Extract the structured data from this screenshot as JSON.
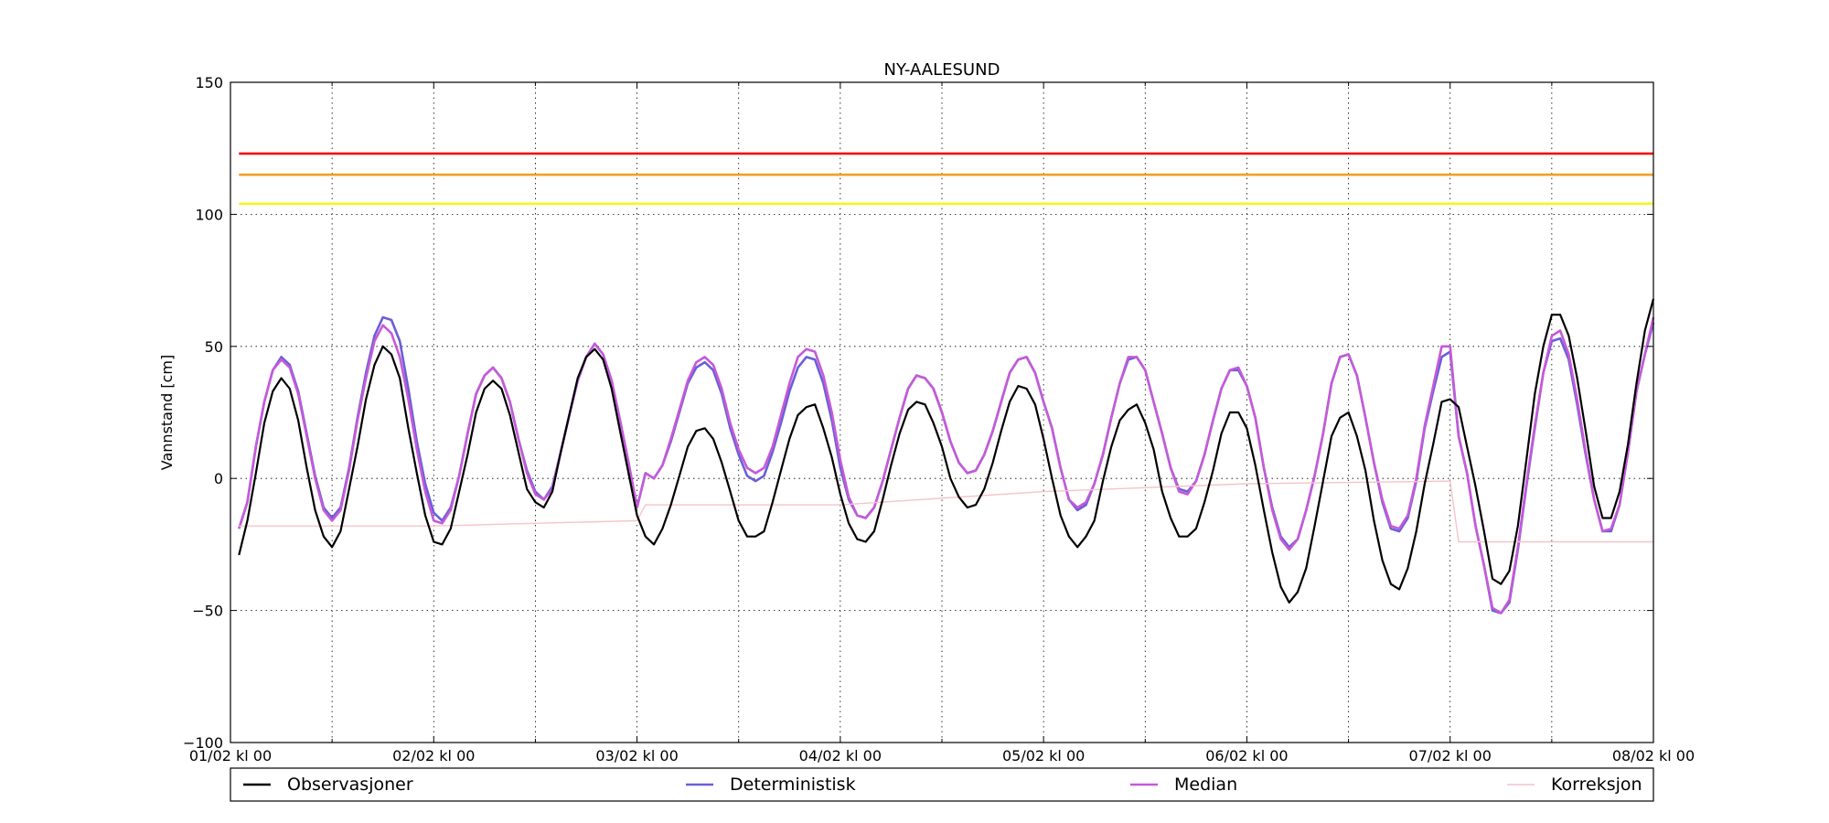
{
  "chart_data": {
    "type": "line",
    "title": "NY-AALESUND",
    "xlabel": "",
    "ylabel": "Vannstand [cm]",
    "xlim": [
      0,
      168
    ],
    "ylim": [
      -100,
      150
    ],
    "yticks": [
      -100,
      -50,
      0,
      50,
      100,
      150
    ],
    "ytick_labels": [
      "−100",
      "−50",
      "0",
      "50",
      "100",
      "150"
    ],
    "xticks": [
      0,
      24,
      48,
      72,
      96,
      120,
      144,
      168
    ],
    "xtick_labels": [
      "01/02 kl 00",
      "02/02 kl 00",
      "03/02 kl 00",
      "04/02 kl 00",
      "05/02 kl 00",
      "06/02 kl 00",
      "07/02 kl 00",
      "08/02 kl 00"
    ],
    "minor_xticks": [
      12,
      36,
      60,
      84,
      108,
      132,
      156
    ],
    "grid": true,
    "legend_position": "bottom",
    "thresholds": [
      {
        "value": 123,
        "color": "#ee1111"
      },
      {
        "value": 115,
        "color": "#f0a020"
      },
      {
        "value": 104,
        "color": "#f5f522"
      }
    ],
    "series": [
      {
        "name": "Observasjoner",
        "color": "#000000",
        "x": [
          1,
          2,
          3,
          4,
          5,
          6,
          7,
          8,
          9,
          10,
          11,
          12,
          13,
          14,
          15,
          16,
          17,
          18,
          19,
          20,
          21,
          22,
          23,
          24,
          25,
          26,
          27,
          28,
          29,
          30,
          31,
          32,
          33,
          34,
          35,
          36,
          37,
          38,
          39,
          40,
          41,
          42,
          43,
          44,
          45,
          46,
          47,
          48,
          49,
          50,
          51,
          52,
          53,
          54,
          55,
          56,
          57,
          58,
          59,
          60,
          61,
          62,
          63,
          64,
          65,
          66,
          67,
          68,
          69,
          70,
          71,
          72,
          73,
          74,
          75,
          76,
          77,
          78,
          79,
          80,
          81,
          82,
          83,
          84,
          85,
          86,
          87,
          88,
          89,
          90,
          91,
          92,
          93,
          94,
          95,
          96,
          97,
          98,
          99,
          100,
          101,
          102,
          103,
          104,
          105,
          106,
          107,
          108,
          109,
          110,
          111,
          112,
          113,
          114,
          115,
          116,
          117,
          118,
          119,
          120,
          121,
          122,
          123,
          124,
          125,
          126,
          127,
          128,
          129,
          130,
          131,
          132,
          133,
          134,
          135,
          136,
          137,
          138,
          139,
          140,
          141,
          142,
          143,
          144,
          145,
          146,
          147,
          148,
          149,
          150,
          151,
          152,
          153,
          154,
          155,
          156,
          157,
          158,
          159,
          160,
          161,
          162,
          163,
          164,
          165,
          166,
          167,
          168
        ],
        "y": [
          -29,
          -16,
          2,
          21,
          33,
          38,
          34,
          22,
          4,
          -12,
          -22,
          -26,
          -20,
          -4,
          12,
          30,
          43,
          50,
          47,
          38,
          19,
          2,
          -14,
          -24,
          -25,
          -19,
          -5,
          9,
          25,
          34,
          37,
          34,
          24,
          10,
          -4,
          -9,
          -11,
          -5,
          10,
          24,
          38,
          46,
          49,
          45,
          34,
          18,
          2,
          -14,
          -22,
          -25,
          -19,
          -10,
          1,
          12,
          18,
          19,
          15,
          6,
          -5,
          -16,
          -22,
          -22,
          -20,
          -9,
          3,
          15,
          24,
          27,
          28,
          19,
          8,
          -6,
          -17,
          -23,
          -24,
          -20,
          -8,
          5,
          17,
          26,
          29,
          28,
          21,
          12,
          0,
          -7,
          -11,
          -10,
          -4,
          6,
          18,
          29,
          35,
          34,
          28,
          15,
          0,
          -14,
          -22,
          -26,
          -22,
          -16,
          -1,
          12,
          22,
          26,
          28,
          21,
          11,
          -5,
          -15,
          -22,
          -22,
          -19,
          -9,
          3,
          17,
          25,
          25,
          19,
          5,
          -12,
          -28,
          -41,
          -47,
          -43,
          -34,
          -18,
          -1,
          16,
          23,
          25,
          16,
          3,
          -16,
          -31,
          -40,
          -42,
          -34,
          -20,
          -2,
          13,
          29,
          30,
          27,
          12,
          -3,
          -20,
          -38,
          -40,
          -35,
          -18,
          7,
          32,
          50,
          62,
          62,
          54,
          38,
          18,
          -3,
          -15,
          -15,
          -5,
          13,
          36,
          56,
          68
        ]
      },
      {
        "name": "Deterministisk",
        "color": "#6a5fd8",
        "x": [
          1,
          2,
          3,
          4,
          5,
          6,
          7,
          8,
          9,
          10,
          11,
          12,
          13,
          14,
          15,
          16,
          17,
          18,
          19,
          20,
          21,
          22,
          23,
          24,
          25,
          26,
          27,
          28,
          29,
          30,
          31,
          32,
          33,
          34,
          35,
          36,
          37,
          38,
          39,
          40,
          41,
          42,
          43,
          44,
          45,
          46,
          47,
          48,
          49,
          50,
          51,
          52,
          53,
          54,
          55,
          56,
          57,
          58,
          59,
          60,
          61,
          62,
          63,
          64,
          65,
          66,
          67,
          68,
          69,
          70,
          71,
          72,
          73,
          74,
          75,
          76,
          77,
          78,
          79,
          80,
          81,
          82,
          83,
          84,
          85,
          86,
          87,
          88,
          89,
          90,
          91,
          92,
          93,
          94,
          95,
          96,
          97,
          98,
          99,
          100,
          101,
          102,
          103,
          104,
          105,
          106,
          107,
          108,
          109,
          110,
          111,
          112,
          113,
          114,
          115,
          116,
          117,
          118,
          119,
          120,
          121,
          122,
          123,
          124,
          125,
          126,
          127,
          128,
          129,
          130,
          131,
          132,
          133,
          134,
          135,
          136,
          137,
          138,
          139,
          140,
          141,
          142,
          143,
          144,
          145,
          146,
          147,
          148,
          149,
          150,
          151,
          152,
          153,
          154,
          155,
          156,
          157,
          158,
          159,
          160,
          161,
          162,
          163,
          164,
          165,
          166,
          167,
          168
        ],
        "y": [
          -19,
          -9,
          12,
          29,
          41,
          46,
          43,
          33,
          17,
          1,
          -11,
          -15,
          -11,
          4,
          23,
          40,
          54,
          61,
          60,
          52,
          34,
          14,
          -2,
          -13,
          -16,
          -11,
          1,
          17,
          32,
          39,
          42,
          38,
          29,
          15,
          3,
          -5,
          -8,
          -3,
          10,
          24,
          37,
          46,
          51,
          47,
          37,
          22,
          6,
          -11,
          2,
          0,
          5,
          14,
          25,
          36,
          42,
          44,
          41,
          32,
          19,
          9,
          1,
          -1,
          1,
          10,
          21,
          33,
          42,
          46,
          45,
          36,
          22,
          4,
          -8,
          -14,
          -15,
          -11,
          -1,
          11,
          23,
          34,
          39,
          38,
          34,
          25,
          14,
          6,
          2,
          3,
          9,
          18,
          29,
          40,
          45,
          46,
          40,
          29,
          19,
          4,
          -8,
          -12,
          -10,
          -2,
          9,
          23,
          36,
          45,
          46,
          41,
          29,
          17,
          4,
          -4,
          -5,
          -1,
          9,
          22,
          34,
          41,
          41,
          35,
          23,
          4,
          -11,
          -22,
          -26,
          -23,
          -12,
          1,
          17,
          36,
          46,
          47,
          39,
          23,
          6,
          -9,
          -19,
          -20,
          -15,
          -1,
          19,
          33,
          46,
          48,
          16,
          2,
          -18,
          -33,
          -50,
          -51,
          -47,
          -27,
          -3,
          19,
          40,
          52,
          53,
          45,
          28,
          9,
          -8,
          -20,
          -20,
          -10,
          10,
          33,
          47,
          59
        ]
      },
      {
        "name": "Median",
        "color": "#c45ad8",
        "x": [
          1,
          2,
          3,
          4,
          5,
          6,
          7,
          8,
          9,
          10,
          11,
          12,
          13,
          14,
          15,
          16,
          17,
          18,
          19,
          20,
          21,
          22,
          23,
          24,
          25,
          26,
          27,
          28,
          29,
          30,
          31,
          32,
          33,
          34,
          35,
          36,
          37,
          38,
          39,
          40,
          41,
          42,
          43,
          44,
          45,
          46,
          47,
          48,
          49,
          50,
          51,
          52,
          53,
          54,
          55,
          56,
          57,
          58,
          59,
          60,
          61,
          62,
          63,
          64,
          65,
          66,
          67,
          68,
          69,
          70,
          71,
          72,
          73,
          74,
          75,
          76,
          77,
          78,
          79,
          80,
          81,
          82,
          83,
          84,
          85,
          86,
          87,
          88,
          89,
          90,
          91,
          92,
          93,
          94,
          95,
          96,
          97,
          98,
          99,
          100,
          101,
          102,
          103,
          104,
          105,
          106,
          107,
          108,
          109,
          110,
          111,
          112,
          113,
          114,
          115,
          116,
          117,
          118,
          119,
          120,
          121,
          122,
          123,
          124,
          125,
          126,
          127,
          128,
          129,
          130,
          131,
          132,
          133,
          134,
          135,
          136,
          137,
          138,
          139,
          140,
          141,
          142,
          143,
          144,
          145,
          146,
          147,
          148,
          149,
          150,
          151,
          152,
          153,
          154,
          155,
          156,
          157,
          158,
          159,
          160,
          161,
          162,
          163,
          164,
          165,
          166,
          167,
          168
        ],
        "y": [
          -19,
          -9,
          12,
          29,
          41,
          45,
          42,
          32,
          16,
          0,
          -12,
          -16,
          -12,
          3,
          22,
          38,
          52,
          58,
          55,
          46,
          30,
          11,
          -5,
          -16,
          -17,
          -12,
          1,
          17,
          32,
          39,
          42,
          38,
          29,
          15,
          2,
          -6,
          -8,
          -4,
          10,
          24,
          37,
          46,
          51,
          47,
          37,
          22,
          6,
          -11,
          2,
          0,
          5,
          15,
          26,
          37,
          44,
          46,
          43,
          34,
          21,
          11,
          4,
          2,
          4,
          12,
          24,
          36,
          46,
          49,
          48,
          39,
          25,
          7,
          -7,
          -14,
          -15,
          -11,
          -1,
          11,
          23,
          34,
          39,
          38,
          34,
          25,
          14,
          6,
          2,
          3,
          9,
          18,
          29,
          40,
          45,
          46,
          40,
          29,
          19,
          4,
          -8,
          -11,
          -9,
          -2,
          9,
          23,
          36,
          46,
          46,
          41,
          29,
          17,
          4,
          -5,
          -6,
          -1,
          9,
          22,
          34,
          41,
          42,
          35,
          23,
          4,
          -12,
          -23,
          -27,
          -23,
          -12,
          1,
          17,
          36,
          46,
          47,
          39,
          23,
          6,
          -8,
          -18,
          -19,
          -14,
          0,
          20,
          35,
          50,
          50,
          16,
          2,
          -18,
          -33,
          -49,
          -51,
          -46,
          -26,
          -2,
          20,
          40,
          54,
          56,
          47,
          30,
          10,
          -8,
          -20,
          -19,
          -10,
          10,
          33,
          47,
          61
        ]
      },
      {
        "name": "Korreksjon",
        "color": "#f4c4c8",
        "x": [
          1,
          24,
          48,
          48,
          49,
          72,
          72,
          96,
          96,
          120,
          120,
          144,
          145,
          168
        ],
        "y": [
          -18,
          -18,
          -16,
          -16,
          -10,
          -10,
          -10,
          -5,
          -5,
          -2,
          -2,
          -1,
          -24,
          -24
        ]
      }
    ]
  }
}
